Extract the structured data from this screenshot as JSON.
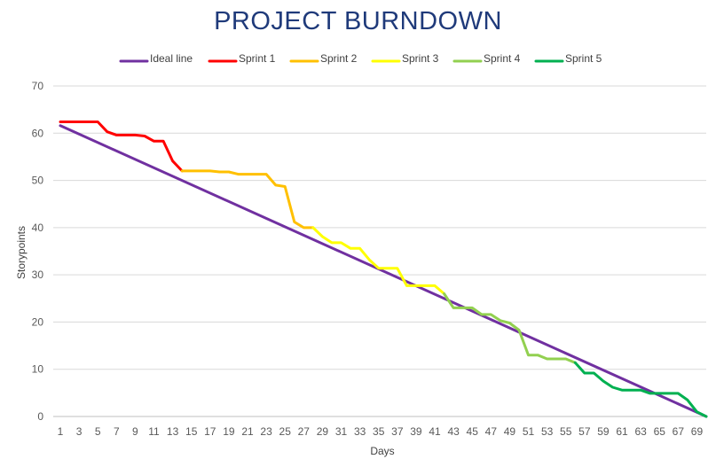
{
  "chart_data": {
    "type": "line",
    "title": "PROJECT BURNDOWN",
    "xlabel": "Days",
    "ylabel": "Storypoints",
    "ylim": [
      0,
      70
    ],
    "xlim": [
      1,
      70
    ],
    "y_ticks": [
      0,
      10,
      20,
      30,
      40,
      50,
      60,
      70
    ],
    "x_ticks": [
      1,
      3,
      5,
      7,
      9,
      11,
      13,
      15,
      17,
      19,
      21,
      23,
      25,
      27,
      29,
      31,
      33,
      35,
      37,
      39,
      41,
      43,
      45,
      47,
      49,
      51,
      53,
      55,
      57,
      59,
      61,
      63,
      65,
      67,
      69
    ],
    "grid": "horizontal",
    "legend": "top",
    "series": [
      {
        "name": "Ideal line",
        "color": "#7030a0",
        "x": [
          1,
          70
        ],
        "y": [
          61.6,
          0
        ]
      },
      {
        "name": "Sprint 1",
        "color": "#ff0000",
        "x": [
          1,
          2,
          3,
          4,
          5,
          6,
          7,
          8,
          9,
          10,
          11,
          12,
          13,
          14
        ],
        "y": [
          62.4,
          62.4,
          62.4,
          62.4,
          62.4,
          60.3,
          59.6,
          59.6,
          59.6,
          59.4,
          58.3,
          58.3,
          54.1,
          52.0
        ]
      },
      {
        "name": "Sprint 2",
        "color": "#ffc000",
        "x": [
          14,
          15,
          16,
          17,
          18,
          19,
          20,
          21,
          22,
          23,
          24,
          25,
          26,
          27,
          28
        ],
        "y": [
          52.0,
          52.0,
          52.0,
          52.0,
          51.8,
          51.8,
          51.3,
          51.3,
          51.3,
          51.3,
          49.0,
          48.7,
          41.2,
          40.0,
          40.0
        ]
      },
      {
        "name": "Sprint 3",
        "color": "#ffff00",
        "x": [
          28,
          29,
          30,
          31,
          32,
          33,
          34,
          35,
          36,
          37,
          38,
          39,
          40,
          41,
          42
        ],
        "y": [
          40.0,
          38.1,
          36.8,
          36.8,
          35.6,
          35.6,
          33.2,
          31.4,
          31.4,
          31.4,
          27.7,
          27.7,
          27.7,
          27.7,
          26.0
        ]
      },
      {
        "name": "Sprint 4",
        "color": "#92d050",
        "x": [
          42,
          43,
          44,
          45,
          46,
          47,
          48,
          49,
          50,
          51,
          52,
          53,
          54,
          55,
          56
        ],
        "y": [
          26.0,
          23.0,
          23.0,
          23.0,
          21.6,
          21.6,
          20.3,
          19.8,
          18.3,
          13.0,
          13.0,
          12.2,
          12.2,
          12.2,
          11.4
        ]
      },
      {
        "name": "Sprint 5",
        "color": "#00b050",
        "x": [
          56,
          57,
          58,
          59,
          60,
          61,
          62,
          63,
          64,
          65,
          66,
          67,
          68,
          69,
          70
        ],
        "y": [
          11.4,
          9.2,
          9.2,
          7.5,
          6.2,
          5.6,
          5.6,
          5.6,
          4.9,
          4.9,
          4.9,
          4.9,
          3.5,
          1.0,
          0.0
        ]
      }
    ]
  }
}
